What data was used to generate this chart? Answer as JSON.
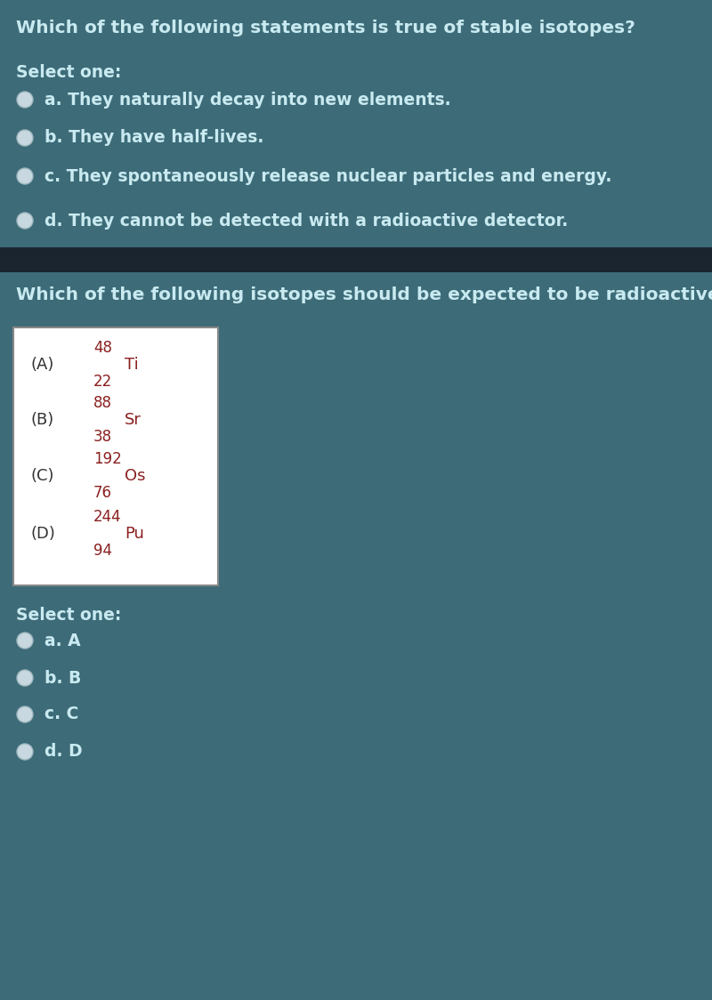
{
  "bg_color": "#3d6b78",
  "separator_color": "#1a2530",
  "text_color": "#c8eaf0",
  "circle_fill": "#c8d8e0",
  "circle_edge": "#a0b8c0",
  "box_bg": "#ffffff",
  "box_edge": "#888888",
  "red_color": "#8B2020",
  "black_color": "#333333",
  "q1_title": "Which of the following statements is true of stable isotopes?",
  "q1_select": "Select one:",
  "q1_options": [
    "a. They naturally decay into new elements.",
    "b. They have half-lives.",
    "c. They spontaneously release nuclear particles and energy.",
    "d. They cannot be detected with a radioactive detector."
  ],
  "q2_title": "Which of the following isotopes should be expected to be radioactive?",
  "q2_select": "Select one:",
  "q2_options": [
    "a. A",
    "b. B",
    "c. C",
    "d. D"
  ],
  "isotopes": [
    {
      "label": "(A)",
      "mass": "48",
      "symbol": "Ti",
      "atomic": "22"
    },
    {
      "label": "(B)",
      "mass": "88",
      "symbol": "Sr",
      "atomic": "38"
    },
    {
      "label": "(C)",
      "mass": "192",
      "symbol": "Os",
      "atomic": "76"
    },
    {
      "label": "(D)",
      "mass": "244",
      "symbol": "Pu",
      "atomic": "94"
    }
  ]
}
